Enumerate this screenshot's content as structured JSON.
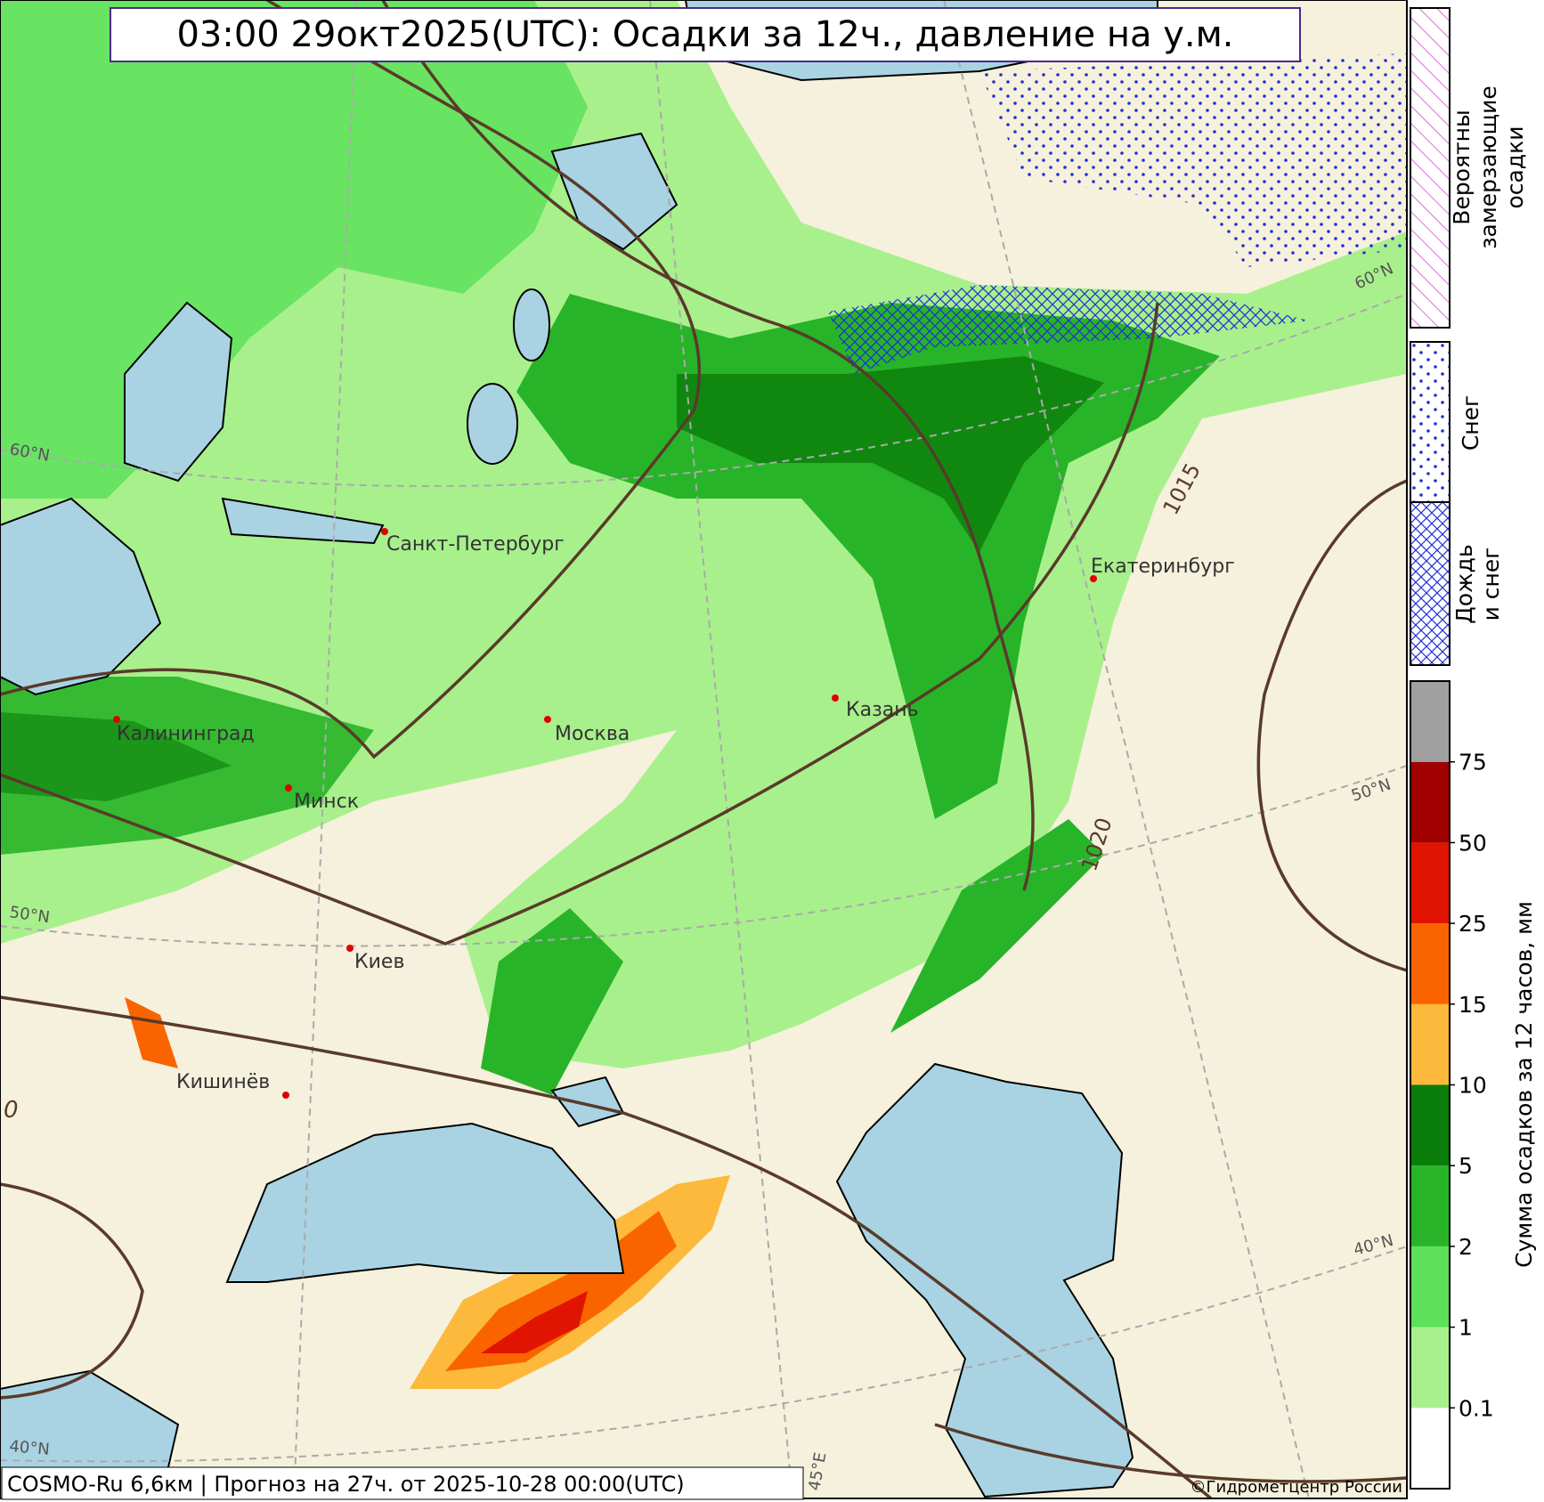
{
  "title": "03:00 29окт2025(UTC): Осадки за 12ч., давление на у.м.",
  "footer": "COSMO-Ru 6,6км | Прогноз на  27ч. от 2025-10-28 00:00(UTC)",
  "copyright": "©Гидрометцентр России",
  "cities": [
    "Санкт-Петербург",
    "Калининград",
    "Москва",
    "Минск",
    "Киев",
    "Кишинёв",
    "Казань",
    "Екатеринбург"
  ],
  "isobar_labels": [
    "1015",
    "1020",
    "0"
  ],
  "grid_labels": [
    "60°N",
    "50°N",
    "40°N",
    "60°N",
    "50°N",
    "40°N",
    "45°E"
  ],
  "legend": {
    "freezing": [
      "Вероятны",
      "замерзающие",
      "осадки"
    ],
    "snow": [
      "Снег"
    ],
    "rain_snow": [
      "Дождь",
      "и снег"
    ],
    "colorbar_title": "Сумма осадков за 12 часов, мм",
    "levels": [
      0.1,
      1,
      2,
      5,
      10,
      15,
      25,
      50,
      75
    ],
    "colors": [
      "#ffffff",
      "#a8f08c",
      "#5de05a",
      "#28b428",
      "#0a7d0a",
      "#fdb93c",
      "#fa6400",
      "#e01400",
      "#a00000",
      "#a0a0a0"
    ]
  }
}
